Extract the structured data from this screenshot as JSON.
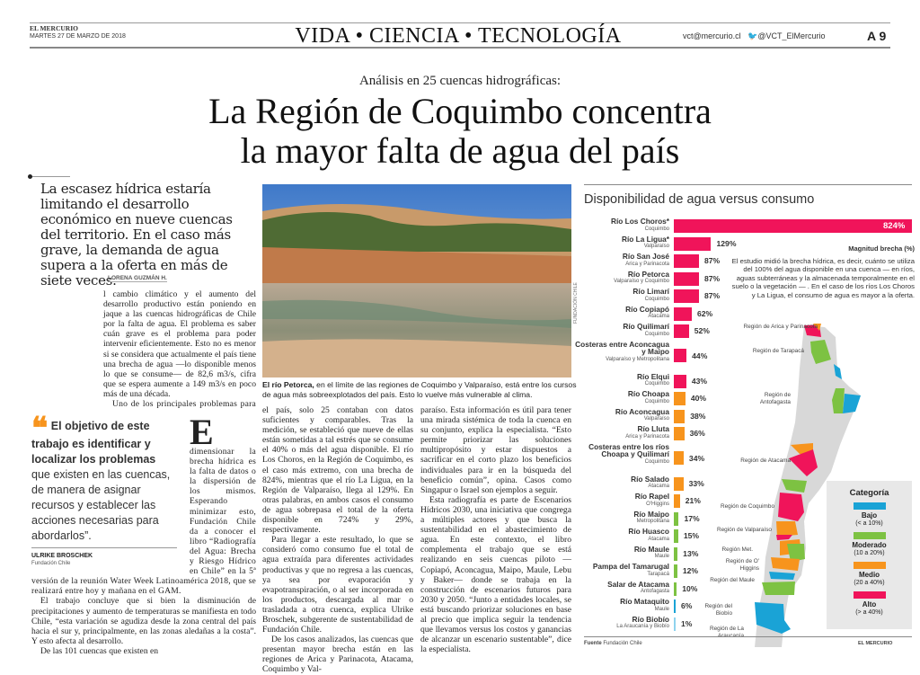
{
  "masthead": {
    "paper": "EL MERCURIO",
    "date": "MARTES 27 DE MARZO DE 2018",
    "section": "VIDA • CIENCIA • TECNOLOGÍA",
    "email": "vct@mercurio.cl",
    "twitter": "@VCT_ElMercurio",
    "page": "A 9"
  },
  "article": {
    "kicker": "Análisis en 25 cuencas hidrográficas:",
    "headline_1": "La Región de Coquimbo concentra",
    "headline_2": "la mayor falta de agua del país",
    "deck": "La escasez hídrica estaría limitando el desarrollo económico en nueve cuencas del territorio. En el caso más grave, la demanda de agua supera a la oferta en más de siete veces.",
    "byline": "LORENA GUZMÁN H.",
    "dropcap": "E",
    "col1": [
      "l cambio climático y el aumento del desarrollo productivo están poniendo en jaque a las cuencas hidrográficas de Chile por la falta de agua. El problema es saber cuán grave es el problema para poder intervenir eficientemente. Esto no es menor si se considera que actualmente el país tiene una brecha de agua —lo disponible menos lo que se consume— de 82,6 m3/s, cifra que se espera aumente a 149 m3/s en poco más de una década.",
      "Uno de los principales problemas para dimensionar la brecha hídrica es la falta de datos o la dispersión de los mismos. Esperando minimizar esto, Fundación Chile da a conocer el libro “Radiografía del Agua: Brecha y Riesgo Hídrico en Chile” en la 5ª versión de la reunión Water Week Latinoamérica 2018, que se realizará entre hoy y mañana en el GAM.",
      "El trabajo concluye que si bien la disminución de precipitaciones y aumento de temperaturas se manifiesta en todo Chile, “esta variación se agudiza desde la zona central del país hacia el sur y, principalmente, en las zonas aledañas a la costa”. Y esto afecta al desarrollo.",
      "De las 101 cuencas que existen en"
    ],
    "col2": [
      "el país, solo 25 contaban con datos suficientes y comparables. Tras la medición, se estableció que nueve de ellas están sometidas a tal estrés que se consume el 40% o más del agua disponible. El río Los Choros, en la Región de Coquimbo, es el caso más extremo, con una brecha de 824%, mientras que el río La Ligua, en la Región de Valparaíso, llega al 129%. En otras palabras, en ambos casos el consumo de agua sobrepasa el total de la oferta disponible en 724% y 29%, respectivamente.",
      "Para llegar a este resultado, lo que se consideró como consumo fue el total de agua extraída para diferentes actividades productivas y que no regresa a las cuencas, ya sea por evaporación y evapotranspiración, o al ser incorporada en los productos, descargada al mar o trasladada a otra cuenca, explica Ulrike Broschek, subgerente de sustentabilidad de Fundación Chile.",
      "De los casos analizados, las cuencas que presentan mayor brecha están en las regiones de Arica y Parinacota, Atacama, Coquimbo y Val-"
    ],
    "col3": [
      "paraíso. Esta información es útil para tener una mirada sistémica de toda la cuenca en su conjunto, explica la especialista. “Esto permite priorizar las soluciones multipropósito y estar dispuestos a sacrificar en el corto plazo los beneficios individuales para ir en la búsqueda del beneficio común”, opina. Casos como Singapur o Israel son ejemplos a seguir.",
      "Esta radiografía es parte de Escenarios Hídricos 2030, una iniciativa que congrega a múltiples actores y que busca la sustentabilidad en el abastecimiento de agua. En este contexto, el libro complementa el trabajo que se está realizando en seis cuencas piloto —Copiapó, Aconcagua, Maipo, Maule, Lebu y Baker— donde se trabaja en la construcción de escenarios futuros para 2030 y 2050. “Junto a entidades locales, se está buscando priorizar soluciones en base al precio que implica seguir la tendencia que llevamos versus los costos y ganancias de alcanzar un escenario sustentable”, dice la especialista."
    ],
    "quote_bold": "El objetivo de este trabajo es identificar y localizar los problemas",
    "quote_rest": " que existen en las cuencas, de manera de asignar recursos y establecer las acciones necesarias para abordarlos”.",
    "quote_author": "ULRIKE BROSCHEK",
    "quote_role": "Fundación Chile",
    "caption_bold": "El río Petorca,",
    "caption_rest": " en el límite de las regiones de Coquimbo y Valparaíso, está entre los cursos de agua más sobreexplotados del país. Esto lo vuelve más vulnerable al clima.",
    "photo_credit": "FUNDACIÓN CHILE"
  },
  "chart_data": {
    "type": "bar",
    "title": "Disponibilidad de agua versus consumo",
    "xlabel": "Magnitud brecha (%)",
    "note": "El estudio midió la brecha hídrica, es decir, cuánto se utiliza del 100% del agua disponible en una cuenca — en ríos, aguas subterráneas y la almacenada temporalmente en el suelo o la vegetación — . En el caso de los ríos Los Choros y La Ligua, el consumo de agua es mayor a la oferta.",
    "source_label": "Fuente",
    "source": "Fundación Chile",
    "brand": "EL MERCURIO",
    "colors": {
      "Alto": "#f0145a",
      "Medio": "#f7941d",
      "Moderado": "#7dc242",
      "Bajo": "#1aa3d6",
      "Bajo_light": "#8fd3ee"
    },
    "bars": [
      {
        "name": "Río Los Choros*",
        "region": "Coquimbo",
        "value": 824,
        "cat": "Alto"
      },
      {
        "name": "Río La Ligua*",
        "region": "Valparaíso",
        "value": 129,
        "cat": "Alto"
      },
      {
        "name": "Río San José",
        "region": "Arica y Parinacota",
        "value": 87,
        "cat": "Alto"
      },
      {
        "name": "Río Petorca",
        "region": "Valparaíso y Coquimbo",
        "value": 87,
        "cat": "Alto"
      },
      {
        "name": "Río Limarí",
        "region": "Coquimbo",
        "value": 87,
        "cat": "Alto"
      },
      {
        "name": "Río Copiapó",
        "region": "Atacama",
        "value": 62,
        "cat": "Alto"
      },
      {
        "name": "Río Quilimarí",
        "region": "Coquimbo",
        "value": 52,
        "cat": "Alto"
      },
      {
        "name": "Costeras entre Aconcagua y Maipo",
        "region": "Valparaíso y Metropolitana",
        "value": 44,
        "cat": "Alto",
        "tall": true
      },
      {
        "name": "Río Elqui",
        "region": "Coquimbo",
        "value": 43,
        "cat": "Alto"
      },
      {
        "name": "Río Choapa",
        "region": "Coquimbo",
        "value": 40,
        "cat": "Medio"
      },
      {
        "name": "Río Aconcagua",
        "region": "Valparaíso",
        "value": 38,
        "cat": "Medio"
      },
      {
        "name": "Río Lluta",
        "region": "Arica y Parinacota",
        "value": 36,
        "cat": "Medio"
      },
      {
        "name": "Costeras entre los ríos Choapa y Quilimarí",
        "region": "Coquimbo",
        "value": 34,
        "cat": "Medio",
        "tall": true
      },
      {
        "name": "Río Salado",
        "region": "Atacama",
        "value": 33,
        "cat": "Medio"
      },
      {
        "name": "Río Rapel",
        "region": "O'Higgins",
        "value": 21,
        "cat": "Medio"
      },
      {
        "name": "Río Maipo",
        "region": "Metropolitana",
        "value": 17,
        "cat": "Moderado"
      },
      {
        "name": "Río Huasco",
        "region": "Atacama",
        "value": 15,
        "cat": "Moderado"
      },
      {
        "name": "Río Maule",
        "region": "Maule",
        "value": 13,
        "cat": "Moderado"
      },
      {
        "name": "Pampa del Tamarugal",
        "region": "Tarapacá",
        "value": 12,
        "cat": "Moderado"
      },
      {
        "name": "Salar de Atacama",
        "region": "Antofagasta",
        "value": 10,
        "cat": "Moderado"
      },
      {
        "name": "Río Mataquito",
        "region": "Maule",
        "value": 6,
        "cat": "Bajo"
      },
      {
        "name": "Río Biobío",
        "region": "La Araucanía y Biobío",
        "value": 1,
        "cat": "Bajo_light"
      }
    ],
    "legend": {
      "title": "Categoría",
      "items": [
        {
          "label": "Bajo",
          "range": "(< a 10%)",
          "color": "#1aa3d6"
        },
        {
          "label": "Moderado",
          "range": "(10 a 20%)",
          "color": "#7dc242"
        },
        {
          "label": "Medio",
          "range": "(20 a 40%)",
          "color": "#f7941d"
        },
        {
          "label": "Alto",
          "range": "(> a 40%)",
          "color": "#f0145a"
        }
      ]
    },
    "map_regions": [
      "Región de Arica y Parinacota",
      "Región de Tarapacá",
      "Región de Antofagasta",
      "Región de Atacama",
      "Región de Coquimbo",
      "Región de Valparaíso",
      "Región Met.",
      "Región de O' Higgins",
      "Región del Maule",
      "Región del Biobío",
      "Región de La Araucanía"
    ]
  }
}
